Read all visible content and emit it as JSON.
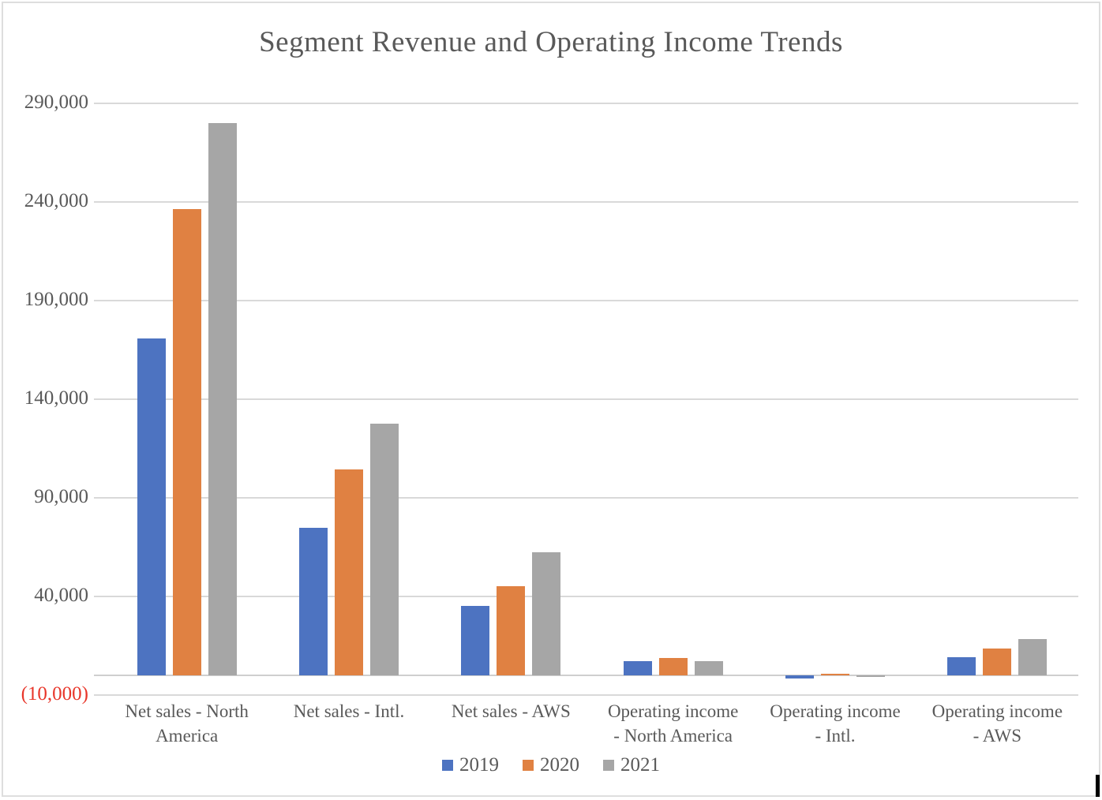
{
  "chart_data": {
    "type": "bar",
    "title": "Segment Revenue and Operating Income Trends",
    "categories": [
      "Net sales - North America",
      "Net sales - Intl.",
      "Net sales - AWS",
      "Operating income - North America",
      "Operating income - Intl.",
      "Operating income - AWS"
    ],
    "category_label_lines": [
      [
        "Net sales - North",
        "America"
      ],
      [
        "Net sales - Intl."
      ],
      [
        "Net sales - AWS"
      ],
      [
        "Operating income",
        "- North America"
      ],
      [
        "Operating income",
        "- Intl."
      ],
      [
        "Operating income",
        "- AWS"
      ]
    ],
    "series": [
      {
        "name": "2019",
        "color": "#4d73c1",
        "values": [
          170773,
          74723,
          35026,
          7033,
          -1693,
          9201
        ]
      },
      {
        "name": "2020",
        "color": "#e08142",
        "values": [
          236282,
          104412,
          45370,
          8651,
          717,
          13531
        ]
      },
      {
        "name": "2021",
        "color": "#a6a6a6",
        "values": [
          279833,
          127787,
          62202,
          7271,
          -924,
          18532
        ]
      }
    ],
    "y_axis": {
      "min": -10000,
      "max": 290000,
      "tick_step": 50000,
      "tick_values": [
        290000,
        240000,
        190000,
        140000,
        90000,
        40000,
        -10000
      ],
      "tick_labels": [
        "290,000",
        "240,000",
        "190,000",
        "140,000",
        "90,000",
        "40,000",
        "(10,000)"
      ],
      "label_color": "#595959",
      "negative_label_color": "#e8362a"
    },
    "grid": true,
    "gridline_color": "#d9d9d9",
    "legend": {
      "position": "bottom",
      "entries": [
        "2019",
        "2020",
        "2021"
      ]
    }
  }
}
